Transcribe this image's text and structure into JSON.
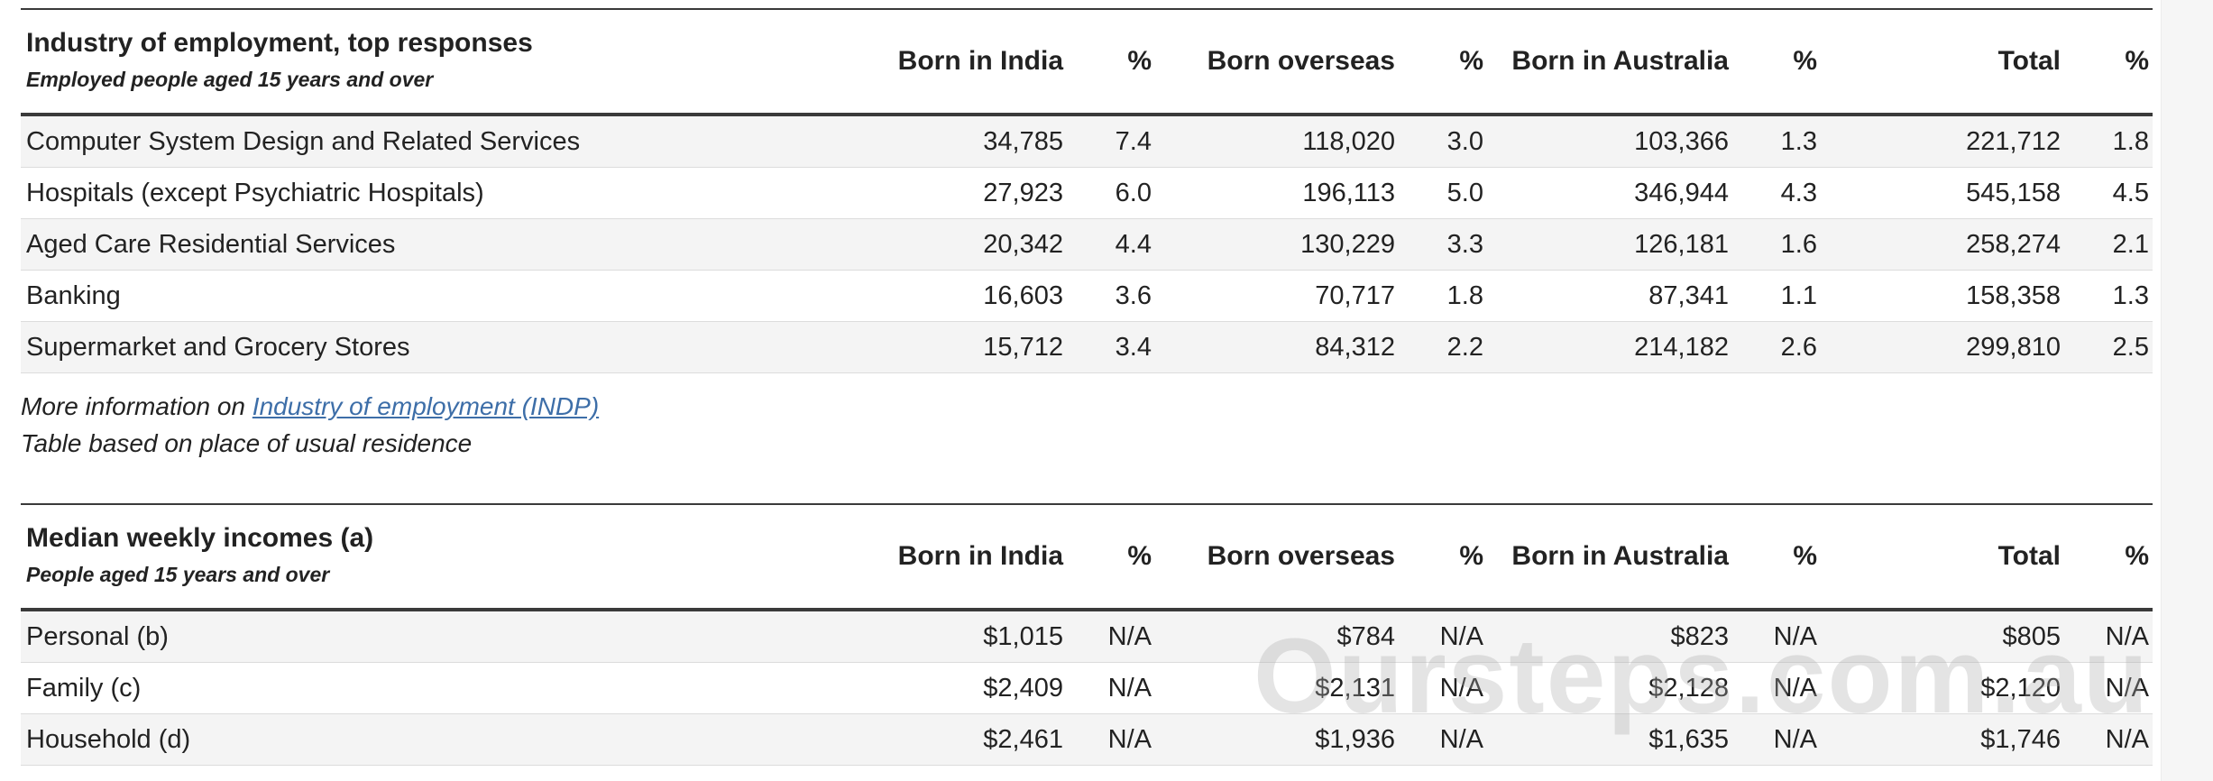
{
  "columns": [
    "Born in India",
    "%",
    "Born overseas",
    "%",
    "Born in Australia",
    "%",
    "Total",
    "%"
  ],
  "industry": {
    "title": "Industry of employment, top responses",
    "subtitle": "Employed people aged 15 years and over",
    "rows": [
      {
        "label": "Computer System Design and Related Services",
        "values": [
          "34,785",
          "7.4",
          "118,020",
          "3.0",
          "103,366",
          "1.3",
          "221,712",
          "1.8"
        ]
      },
      {
        "label": "Hospitals (except Psychiatric Hospitals)",
        "values": [
          "27,923",
          "6.0",
          "196,113",
          "5.0",
          "346,944",
          "4.3",
          "545,158",
          "4.5"
        ]
      },
      {
        "label": "Aged Care Residential Services",
        "values": [
          "20,342",
          "4.4",
          "130,229",
          "3.3",
          "126,181",
          "1.6",
          "258,274",
          "2.1"
        ]
      },
      {
        "label": "Banking",
        "values": [
          "16,603",
          "3.6",
          "70,717",
          "1.8",
          "87,341",
          "1.1",
          "158,358",
          "1.3"
        ]
      },
      {
        "label": "Supermarket and Grocery Stores",
        "values": [
          "15,712",
          "3.4",
          "84,312",
          "2.2",
          "214,182",
          "2.6",
          "299,810",
          "2.5"
        ]
      }
    ],
    "notes": {
      "more_info_prefix": "More information on ",
      "more_info_link": "Industry of employment (INDP)",
      "basis": "Table based on place of usual residence"
    }
  },
  "income": {
    "title": "Median weekly incomes (a)",
    "subtitle": "People aged 15 years and over",
    "rows": [
      {
        "label": "Personal (b)",
        "values": [
          "$1,015",
          "N/A",
          "$784",
          "N/A",
          "$823",
          "N/A",
          "$805",
          "N/A"
        ]
      },
      {
        "label": "Family (c)",
        "values": [
          "$2,409",
          "N/A",
          "$2,131",
          "N/A",
          "$2,128",
          "N/A",
          "$2,120",
          "N/A"
        ]
      },
      {
        "label": "Household (d)",
        "values": [
          "$2,461",
          "N/A",
          "$1,936",
          "N/A",
          "$1,635",
          "N/A",
          "$1,746",
          "N/A"
        ]
      }
    ]
  },
  "watermark": "Oursteps.com.au"
}
